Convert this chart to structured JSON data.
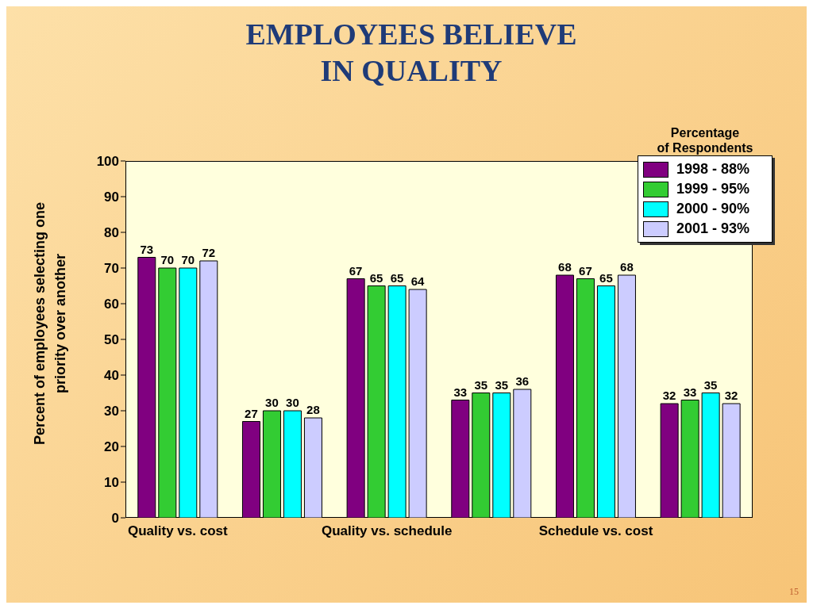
{
  "chart_data": {
    "type": "bar",
    "title": "EMPLOYEES BELIEVE\nIN QUALITY",
    "ylabel": "Percent of employees selecting one\npriority over another",
    "legend_title": "Percentage\nof Respondents",
    "categories": [
      "Quality vs. cost",
      null,
      "Quality vs. schedule",
      null,
      "Schedule vs. cost",
      null
    ],
    "series": [
      {
        "name": "1998 - 88%",
        "color": "#800080",
        "values": [
          73,
          27,
          67,
          33,
          68,
          32
        ]
      },
      {
        "name": "1999 - 95%",
        "color": "#33cc33",
        "values": [
          70,
          30,
          65,
          35,
          67,
          33
        ]
      },
      {
        "name": "2000 - 90%",
        "color": "#00ffff",
        "values": [
          70,
          30,
          65,
          35,
          65,
          35
        ]
      },
      {
        "name": "2001 - 93%",
        "color": "#ccccff",
        "values": [
          72,
          28,
          64,
          36,
          68,
          32
        ]
      }
    ],
    "ylim": [
      0,
      100
    ],
    "yticks": [
      0,
      10,
      20,
      30,
      40,
      50,
      60,
      70,
      80,
      90,
      100
    ],
    "grid": false,
    "legend": "top right",
    "data_labels": true,
    "annotations": [
      "15"
    ]
  }
}
